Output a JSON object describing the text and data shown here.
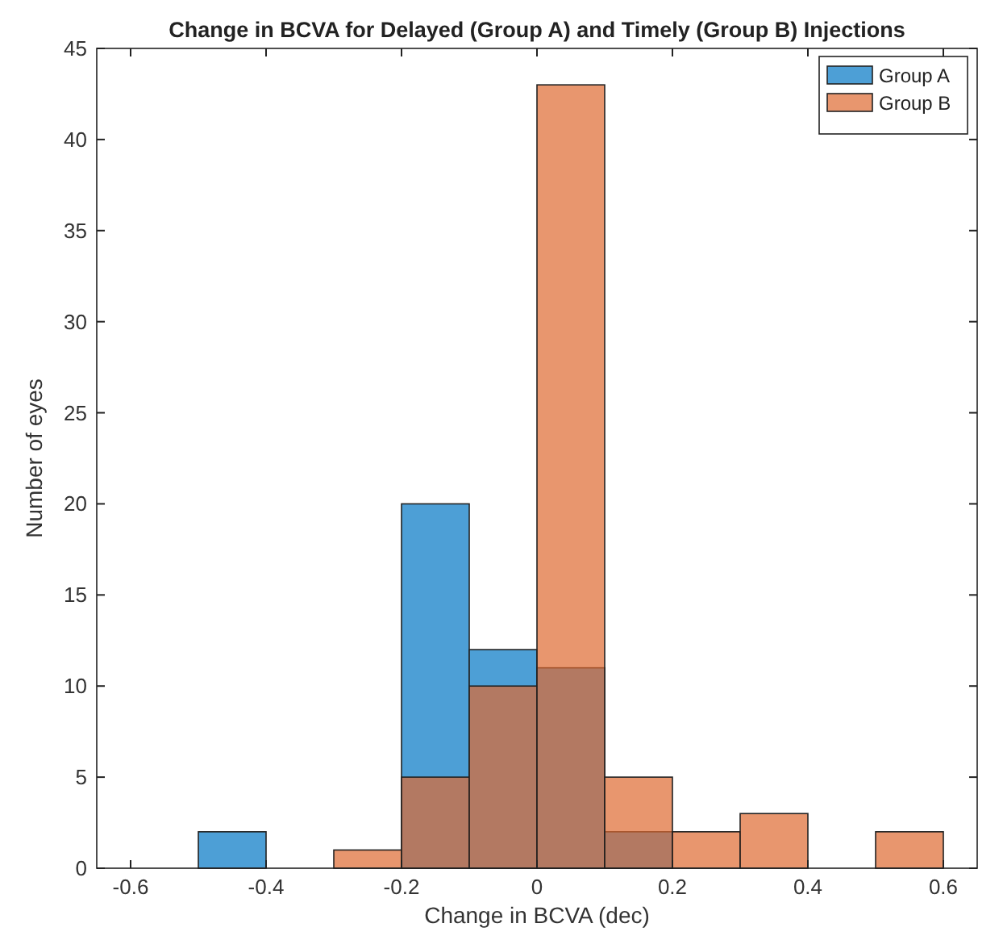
{
  "chart_data": {
    "type": "histogram",
    "title": "Change in BCVA for Delayed (Group A) and Timely (Group B) Injections",
    "xlabel": "Change in BCVA (dec)",
    "ylabel": "Number of eyes",
    "bins": [
      -0.5,
      -0.4,
      -0.3,
      -0.2,
      -0.1,
      0,
      0.1,
      0.2,
      0.3,
      0.4,
      0.5,
      0.6
    ],
    "series": [
      {
        "name": "Group A",
        "color": "#4d9fd6",
        "values": [
          2,
          0,
          0,
          20,
          12,
          11,
          2,
          0,
          0,
          0,
          0
        ]
      },
      {
        "name": "Group B",
        "color": "#e8966e",
        "values": [
          0,
          0,
          1,
          5,
          10,
          43,
          5,
          2,
          3,
          0,
          2
        ]
      }
    ],
    "xlim": [
      -0.65,
      0.65
    ],
    "xticks": [
      {
        "value": -0.6,
        "label": "-0.6"
      },
      {
        "value": -0.4,
        "label": "-0.4"
      },
      {
        "value": -0.2,
        "label": "-0.2"
      },
      0,
      {
        "value": 0.2,
        "label": "0.2"
      },
      {
        "value": 0.4,
        "label": "0.4"
      },
      {
        "value": 0.6,
        "label": "0.6"
      }
    ],
    "ylim": [
      0,
      45
    ],
    "yticks": [
      0,
      5,
      10,
      15,
      20,
      25,
      30,
      35,
      40,
      45
    ],
    "grid": false,
    "legend": "top right"
  }
}
